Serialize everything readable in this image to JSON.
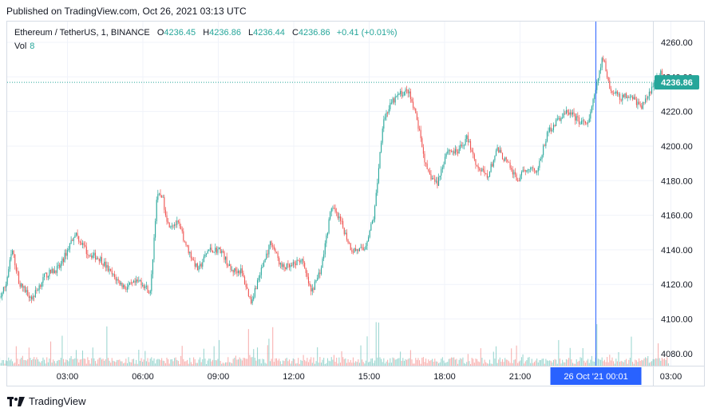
{
  "published": "Published on TradingView.com, Oct 26, 2021 03:13 UTC",
  "legend": {
    "symbol": "Ethereum / TetherUS, 1, BINANCE",
    "open_label": "O",
    "open": "4236.45",
    "high_label": "H",
    "high": "4236.86",
    "low_label": "L",
    "low": "4236.44",
    "close_label": "C",
    "close": "4236.86",
    "change": "+0.41 (+0.01%)",
    "vol_label": "Vol",
    "vol_value": "8"
  },
  "footer": {
    "brand": "TradingView"
  },
  "colors": {
    "up": "#26a69a",
    "down": "#ef5350",
    "crosshair": "#2962ff",
    "price_tag": "#26a69a"
  },
  "chart_data": {
    "type": "candlestick",
    "symbol": "Ethereum / TetherUS",
    "interval": "1",
    "exchange": "BINANCE",
    "y_ticks": [
      "4260.00",
      "4240.00",
      "4220.00",
      "4200.00",
      "4180.00",
      "4160.00",
      "4140.00",
      "4120.00",
      "4100.00",
      "4080.00"
    ],
    "ylim": [
      4073,
      4272
    ],
    "x_ticks": [
      "03:00",
      "06:00",
      "09:00",
      "12:00",
      "15:00",
      "18:00",
      "21:00",
      "00:01",
      "03:00"
    ],
    "crosshair_label": "26 Oct '21   00:01",
    "last_price": "4236.86",
    "price_path": [
      {
        "t": 0.0,
        "p": 4085
      },
      {
        "t": 0.3,
        "p": 4112
      },
      {
        "t": 0.55,
        "p": 4120
      },
      {
        "t": 0.8,
        "p": 4140
      },
      {
        "t": 1.1,
        "p": 4120
      },
      {
        "t": 1.6,
        "p": 4112
      },
      {
        "t": 2.1,
        "p": 4125
      },
      {
        "t": 2.7,
        "p": 4130
      },
      {
        "t": 3.3,
        "p": 4150
      },
      {
        "t": 3.8,
        "p": 4138
      },
      {
        "t": 4.3,
        "p": 4135
      },
      {
        "t": 4.8,
        "p": 4125
      },
      {
        "t": 5.3,
        "p": 4118
      },
      {
        "t": 5.9,
        "p": 4122
      },
      {
        "t": 6.3,
        "p": 4115
      },
      {
        "t": 6.55,
        "p": 4170
      },
      {
        "t": 6.75,
        "p": 4172
      },
      {
        "t": 7.0,
        "p": 4155
      },
      {
        "t": 7.4,
        "p": 4155
      },
      {
        "t": 7.8,
        "p": 4140
      },
      {
        "t": 8.2,
        "p": 4128
      },
      {
        "t": 8.6,
        "p": 4140
      },
      {
        "t": 9.1,
        "p": 4140
      },
      {
        "t": 9.5,
        "p": 4128
      },
      {
        "t": 9.9,
        "p": 4128
      },
      {
        "t": 10.3,
        "p": 4110
      },
      {
        "t": 10.7,
        "p": 4128
      },
      {
        "t": 11.1,
        "p": 4145
      },
      {
        "t": 11.5,
        "p": 4130
      },
      {
        "t": 11.9,
        "p": 4130
      },
      {
        "t": 12.3,
        "p": 4135
      },
      {
        "t": 12.7,
        "p": 4115
      },
      {
        "t": 13.1,
        "p": 4130
      },
      {
        "t": 13.5,
        "p": 4165
      },
      {
        "t": 13.9,
        "p": 4155
      },
      {
        "t": 14.3,
        "p": 4140
      },
      {
        "t": 14.8,
        "p": 4140
      },
      {
        "t": 15.2,
        "p": 4160
      },
      {
        "t": 15.55,
        "p": 4215
      },
      {
        "t": 15.9,
        "p": 4225
      },
      {
        "t": 16.2,
        "p": 4230
      },
      {
        "t": 16.55,
        "p": 4232
      },
      {
        "t": 16.9,
        "p": 4215
      },
      {
        "t": 17.3,
        "p": 4185
      },
      {
        "t": 17.7,
        "p": 4178
      },
      {
        "t": 18.1,
        "p": 4198
      },
      {
        "t": 18.5,
        "p": 4196
      },
      {
        "t": 18.9,
        "p": 4205
      },
      {
        "t": 19.3,
        "p": 4188
      },
      {
        "t": 19.7,
        "p": 4182
      },
      {
        "t": 20.1,
        "p": 4198
      },
      {
        "t": 20.5,
        "p": 4190
      },
      {
        "t": 20.9,
        "p": 4180
      },
      {
        "t": 21.3,
        "p": 4188
      },
      {
        "t": 21.7,
        "p": 4186
      },
      {
        "t": 22.1,
        "p": 4208
      },
      {
        "t": 22.5,
        "p": 4215
      },
      {
        "t": 22.9,
        "p": 4220
      },
      {
        "t": 23.3,
        "p": 4215
      },
      {
        "t": 23.7,
        "p": 4212
      },
      {
        "t": 24.05,
        "p": 4235
      },
      {
        "t": 24.3,
        "p": 4252
      },
      {
        "t": 24.6,
        "p": 4232
      },
      {
        "t": 25.0,
        "p": 4228
      },
      {
        "t": 25.4,
        "p": 4230
      },
      {
        "t": 25.8,
        "p": 4222
      },
      {
        "t": 26.2,
        "p": 4232
      },
      {
        "t": 26.6,
        "p": 4242
      },
      {
        "t": 26.9,
        "p": 4236.9
      }
    ],
    "price_path_time_unit": "hours after 00:00",
    "grid": true,
    "legend": "top-left"
  }
}
